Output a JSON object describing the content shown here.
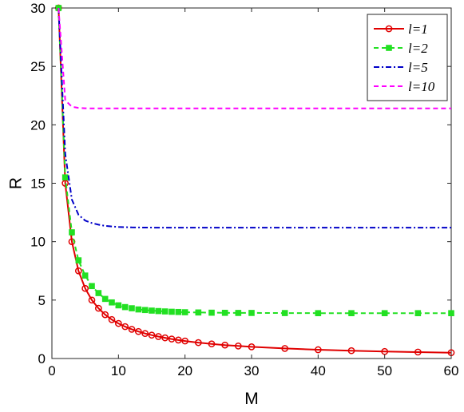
{
  "chart_data": {
    "type": "line",
    "title": "",
    "xlabel": "M",
    "ylabel": "R",
    "xlim": [
      0,
      60
    ],
    "ylim": [
      0,
      30
    ],
    "xticks": [
      0,
      10,
      20,
      30,
      40,
      50,
      60
    ],
    "yticks": [
      0,
      5,
      10,
      15,
      20,
      25,
      30
    ],
    "grid": false,
    "legend_position": "top-right",
    "series": [
      {
        "name": "l=1",
        "color": "#e00000",
        "line_style": "solid",
        "marker": "circle",
        "x": [
          1,
          2,
          3,
          4,
          5,
          6,
          7,
          8,
          9,
          10,
          11,
          12,
          13,
          14,
          15,
          16,
          17,
          18,
          19,
          20,
          22,
          24,
          26,
          28,
          30,
          35,
          40,
          45,
          50,
          55,
          60
        ],
        "y": [
          30,
          15,
          10,
          7.5,
          6,
          5,
          4.3,
          3.75,
          3.33,
          3.0,
          2.73,
          2.5,
          2.31,
          2.14,
          2.0,
          1.88,
          1.77,
          1.67,
          1.58,
          1.5,
          1.36,
          1.25,
          1.15,
          1.07,
          1.0,
          0.86,
          0.75,
          0.67,
          0.6,
          0.55,
          0.5
        ]
      },
      {
        "name": "l=2",
        "color": "#22e022",
        "line_style": "dashed",
        "marker": "square",
        "x": [
          1,
          2,
          3,
          4,
          5,
          6,
          7,
          8,
          9,
          10,
          11,
          12,
          13,
          14,
          15,
          16,
          17,
          18,
          19,
          20,
          22,
          24,
          26,
          28,
          30,
          35,
          40,
          45,
          50,
          55,
          60
        ],
        "y": [
          30,
          15.5,
          10.8,
          8.4,
          7.1,
          6.2,
          5.6,
          5.1,
          4.8,
          4.55,
          4.4,
          4.3,
          4.2,
          4.15,
          4.1,
          4.06,
          4.03,
          4.0,
          3.98,
          3.96,
          3.94,
          3.92,
          3.91,
          3.9,
          3.9,
          3.89,
          3.88,
          3.88,
          3.88,
          3.88,
          3.88
        ]
      },
      {
        "name": "l=5",
        "color": "#0000c8",
        "line_style": "dashdot",
        "marker": "none",
        "x": [
          1,
          2,
          3,
          4,
          5,
          6,
          7,
          8,
          9,
          10,
          11,
          12,
          14,
          16,
          20,
          25,
          30,
          40,
          50,
          60
        ],
        "y": [
          30,
          17.5,
          13.6,
          12.3,
          11.8,
          11.6,
          11.45,
          11.35,
          11.3,
          11.26,
          11.24,
          11.22,
          11.21,
          11.2,
          11.2,
          11.2,
          11.2,
          11.2,
          11.2,
          11.2
        ]
      },
      {
        "name": "l=10",
        "color": "#ff00ff",
        "line_style": "dashed",
        "marker": "none",
        "x": [
          1,
          2,
          3,
          4,
          5,
          6,
          7,
          8,
          10,
          15,
          20,
          30,
          40,
          50,
          60
        ],
        "y": [
          30,
          22.1,
          21.55,
          21.45,
          21.42,
          21.4,
          21.4,
          21.4,
          21.4,
          21.4,
          21.4,
          21.4,
          21.4,
          21.4,
          21.4
        ]
      }
    ]
  }
}
